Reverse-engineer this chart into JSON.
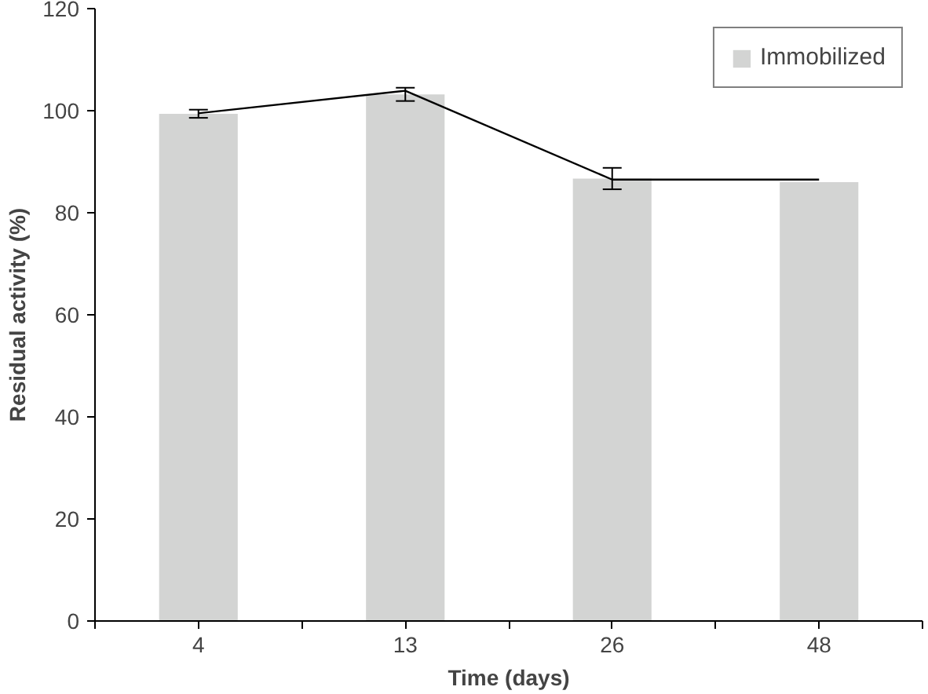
{
  "chart_data": {
    "type": "bar",
    "xlabel": "Time (days)",
    "ylabel": "Residual activity (%)",
    "categories": [
      "4",
      "13",
      "26",
      "48"
    ],
    "ylim": [
      0,
      120
    ],
    "yticks": [
      0,
      20,
      40,
      60,
      80,
      100,
      120
    ],
    "grid": false,
    "legend": "top right",
    "series": [
      {
        "name": "Immobilized",
        "color": "#d3d4d3",
        "values": [
          99.4,
          103.2,
          86.7,
          86.0
        ],
        "errors": [
          0.8,
          1.3,
          2.1,
          null
        ]
      },
      {
        "type": "line",
        "color": "#000000",
        "line_style": "solid",
        "marker": "none",
        "values": [
          99.5,
          103.9,
          86.5,
          86.5
        ]
      }
    ]
  }
}
